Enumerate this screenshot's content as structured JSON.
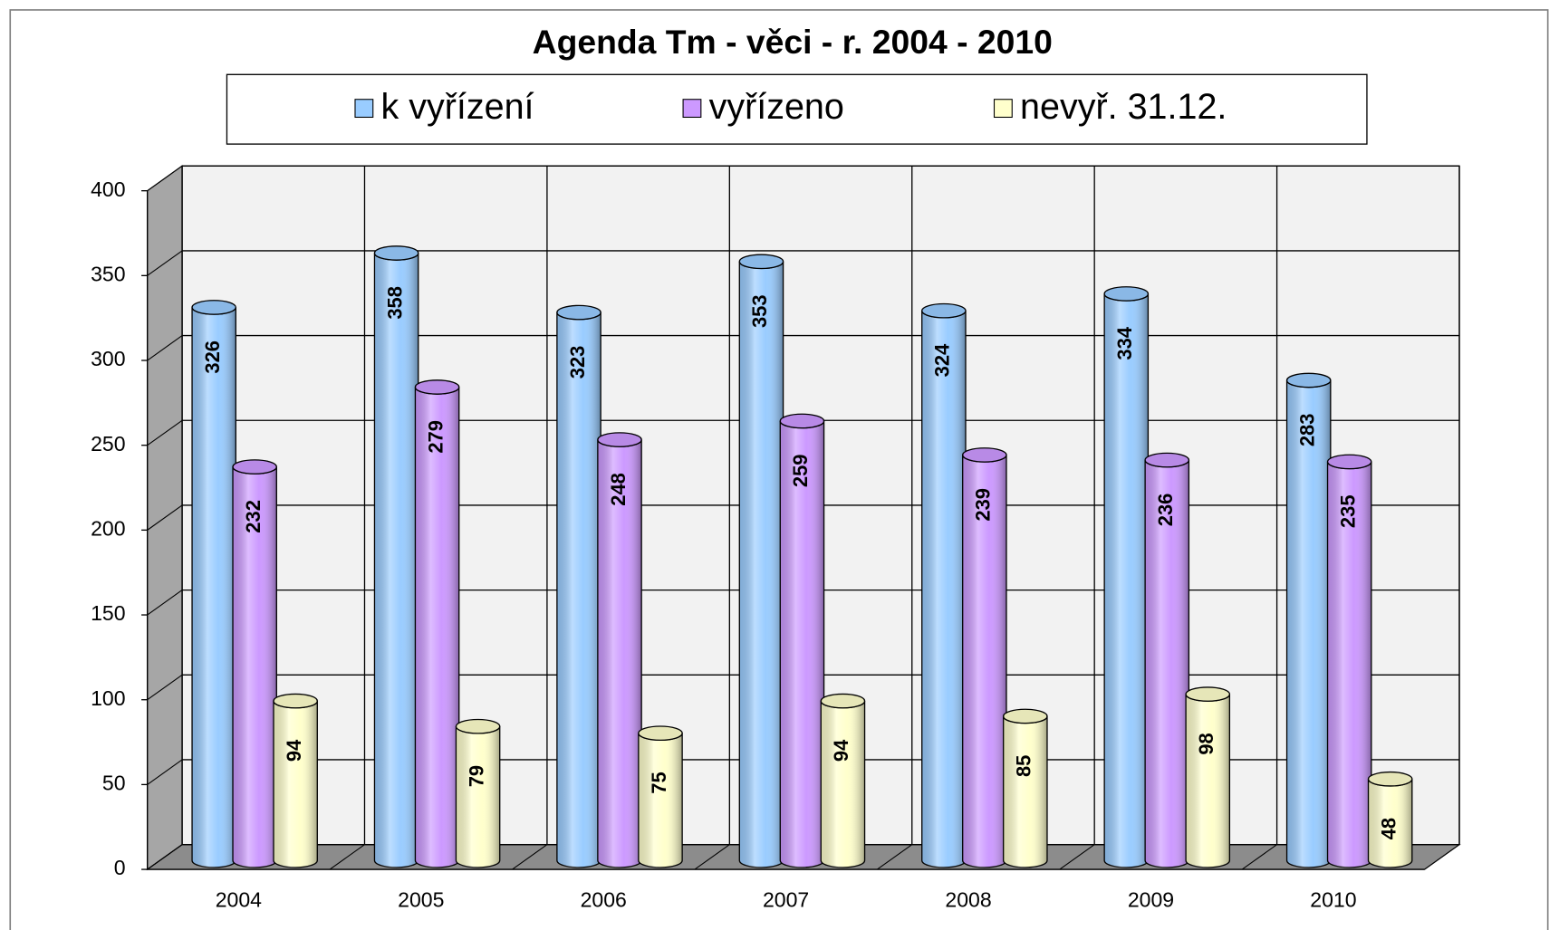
{
  "chart_data": {
    "type": "bar3d",
    "title": "Agenda Tm - věci - r. 2004 - 2010",
    "categories": [
      "2004",
      "2005",
      "2006",
      "2007",
      "2008",
      "2009",
      "2010"
    ],
    "series": [
      {
        "name": "k vyřízení",
        "color": "#99ccff",
        "values": [
          326,
          358,
          323,
          353,
          324,
          334,
          283
        ]
      },
      {
        "name": "vyřízeno",
        "color": "#cc99ff",
        "values": [
          232,
          279,
          248,
          259,
          239,
          236,
          235
        ]
      },
      {
        "name": "nevyř. 31.12.",
        "color": "#ffffcc",
        "values": [
          94,
          79,
          75,
          94,
          85,
          98,
          48
        ]
      }
    ],
    "ylim": [
      0,
      400
    ],
    "yticks": [
      0,
      50,
      100,
      150,
      200,
      250,
      300,
      350,
      400
    ],
    "grid": true,
    "legend": "top"
  }
}
